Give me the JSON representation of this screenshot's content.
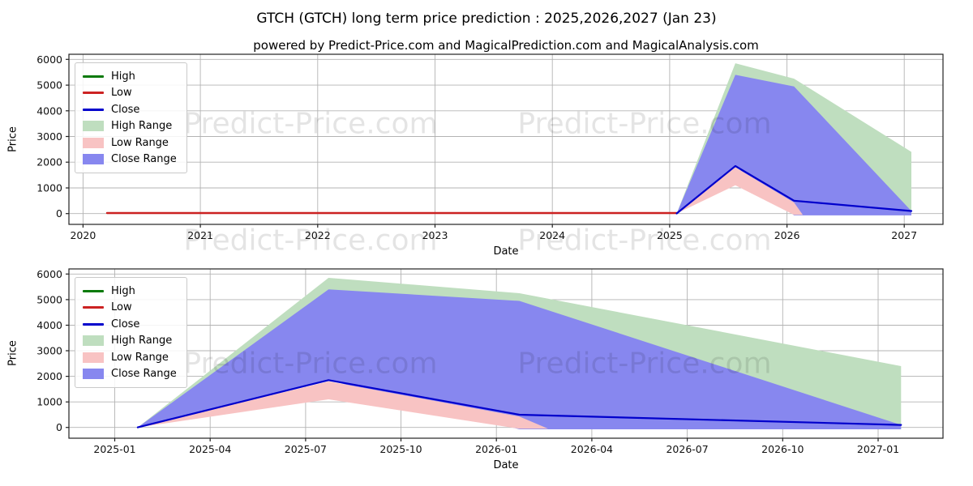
{
  "title": "GTCH (GTCH) long term price prediction : 2025,2026,2027 (Jan 23)",
  "subtitle": "powered by Predict-Price.com and MagicalPrediction.com and MagicalAnalysis.com",
  "watermark": "Predict-Price.com",
  "axis_labels": {
    "x": "Date",
    "y": "Price"
  },
  "legend": {
    "items": [
      {
        "label": "High",
        "type": "line",
        "color": "#0a7a0a"
      },
      {
        "label": "Low",
        "type": "line",
        "color": "#cc2222"
      },
      {
        "label": "Close",
        "type": "line",
        "color": "#0000cc"
      },
      {
        "label": "High Range",
        "type": "patch",
        "color": "#bfdebf"
      },
      {
        "label": "Low Range",
        "type": "patch",
        "color": "#f8c3c3"
      },
      {
        "label": "Close Range",
        "type": "patch",
        "color": "#8787ef"
      }
    ]
  },
  "chart_data": [
    {
      "id": "top-chart",
      "type": "area-line",
      "xlabel": "Date",
      "ylabel": "Price",
      "x_domain": [
        2019.88,
        2027.33
      ],
      "y_domain": [
        -420,
        6200
      ],
      "x_ticks": [
        {
          "label": "2020",
          "value": 2020
        },
        {
          "label": "2021",
          "value": 2021
        },
        {
          "label": "2022",
          "value": 2022
        },
        {
          "label": "2023",
          "value": 2023
        },
        {
          "label": "2024",
          "value": 2024
        },
        {
          "label": "2025",
          "value": 2025
        },
        {
          "label": "2026",
          "value": 2026
        },
        {
          "label": "2027",
          "value": 2027
        }
      ],
      "y_ticks": [
        0,
        1000,
        2000,
        3000,
        4000,
        5000,
        6000
      ],
      "bands": [
        {
          "name": "High Range",
          "fill": "#bfdebf",
          "dates": [
            "2025-01-23",
            "2025-07-23",
            "2026-01-23",
            "2027-01-23"
          ],
          "top": [
            5,
            5850,
            5250,
            2400
          ],
          "bottom": [
            5,
            1850,
            -60,
            -60
          ]
        },
        {
          "name": "Close Range",
          "fill": "#8787ef",
          "dates": [
            "2025-01-23",
            "2025-07-23",
            "2026-01-23",
            "2027-01-23"
          ],
          "top": [
            5,
            5400,
            4950,
            100
          ],
          "bottom": [
            5,
            1850,
            -70,
            -70
          ]
        },
        {
          "name": "Low Range",
          "fill": "#f8c3c3",
          "dates": [
            "2025-01-23",
            "2025-07-23",
            "2026-01-23",
            "2026-02-20"
          ],
          "top": [
            5,
            1800,
            430,
            -50
          ],
          "bottom": [
            5,
            1100,
            -50,
            -50
          ]
        }
      ],
      "series": [
        {
          "name": "Low",
          "color": "#cc2222",
          "width": 2.4,
          "dates": [
            "2020-03-15",
            "2025-01-23"
          ],
          "values": [
            20,
            20
          ]
        },
        {
          "name": "Close",
          "color": "#0000cc",
          "width": 2.2,
          "dates": [
            "2025-01-23",
            "2025-07-23",
            "2026-01-23",
            "2027-01-23"
          ],
          "values": [
            5,
            1850,
            500,
            100
          ]
        }
      ]
    },
    {
      "id": "bottom-chart",
      "type": "area-line",
      "xlabel": "Date",
      "ylabel": "Price",
      "x_domain": [
        2024.88,
        2027.17
      ],
      "y_domain": [
        -420,
        6200
      ],
      "x_ticks": [
        {
          "label": "2025-01",
          "value": 2025.0
        },
        {
          "label": "2025-04",
          "value": 2025.25
        },
        {
          "label": "2025-07",
          "value": 2025.5
        },
        {
          "label": "2025-10",
          "value": 2025.75
        },
        {
          "label": "2026-01",
          "value": 2026.0
        },
        {
          "label": "2026-04",
          "value": 2026.25
        },
        {
          "label": "2026-07",
          "value": 2026.5
        },
        {
          "label": "2026-10",
          "value": 2026.75
        },
        {
          "label": "2027-01",
          "value": 2027.0
        }
      ],
      "y_ticks": [
        0,
        1000,
        2000,
        3000,
        4000,
        5000,
        6000
      ],
      "bands": [
        {
          "name": "High Range",
          "fill": "#bfdebf",
          "dates": [
            "2025-01-23",
            "2025-07-23",
            "2026-01-23",
            "2027-01-23"
          ],
          "top": [
            5,
            5850,
            5250,
            2400
          ],
          "bottom": [
            5,
            1850,
            -60,
            -60
          ]
        },
        {
          "name": "Close Range",
          "fill": "#8787ef",
          "dates": [
            "2025-01-23",
            "2025-07-23",
            "2026-01-23",
            "2027-01-23"
          ],
          "top": [
            5,
            5400,
            4950,
            100
          ],
          "bottom": [
            5,
            1850,
            -70,
            -70
          ]
        },
        {
          "name": "Low Range",
          "fill": "#f8c3c3",
          "dates": [
            "2025-01-23",
            "2025-07-23",
            "2026-01-23",
            "2026-02-20"
          ],
          "top": [
            5,
            1800,
            430,
            -50
          ],
          "bottom": [
            5,
            1100,
            -50,
            -50
          ]
        }
      ],
      "series": [
        {
          "name": "Close",
          "color": "#0000cc",
          "width": 2.2,
          "dates": [
            "2025-01-23",
            "2025-07-23",
            "2026-01-23",
            "2027-01-23"
          ],
          "values": [
            5,
            1850,
            500,
            100
          ]
        }
      ]
    }
  ]
}
